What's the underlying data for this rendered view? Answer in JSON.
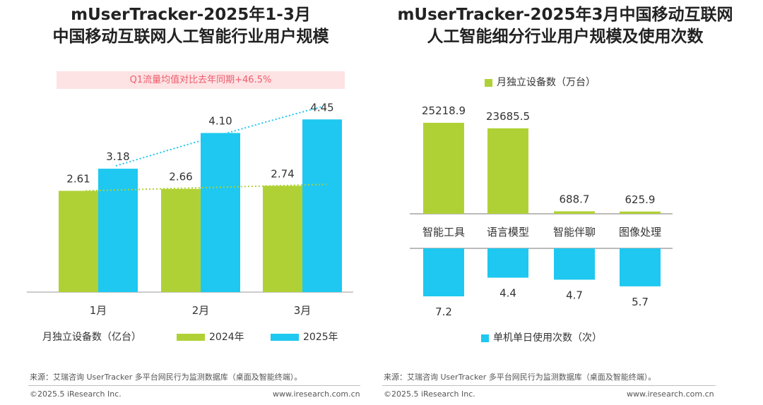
{
  "colors": {
    "green": "#b0d136",
    "blue": "#1ec8f0",
    "callout_bg": "#fde3e4",
    "callout_text": "#ef5c6c"
  },
  "left": {
    "title_line1": "mUserTracker-2025年1-3月",
    "title_line2": "中国移动互联网人工智能行业用户规模",
    "callout": "Q1流量均值对比去年同期+46.5%",
    "legend_label": "月独立设备数（亿台）",
    "source": "来源：艾瑞咨询 UserTracker 多平台网民行为监测数据库（桌面及智能终端）。",
    "copyright": "©2025.5 iResearch Inc.",
    "website": "www.iresearch.com.cn"
  },
  "right": {
    "title_line1": "mUserTracker-2025年3月中国移动互联网",
    "title_line2": "人工智能细分行业用户规模及使用次数",
    "source": "来源：艾瑞咨询 UserTracker 多平台网民行为监测数据库（桌面及智能终端）。",
    "copyright": "©2025.5 iResearch Inc.",
    "website": "www.iresearch.com.cn"
  },
  "chart_data": [
    {
      "type": "bar",
      "title": "mUserTracker-2025年1-3月中国移动互联网人工智能行业用户规模",
      "ylabel": "月独立设备数（亿台）",
      "categories": [
        "1月",
        "2月",
        "3月"
      ],
      "series": [
        {
          "name": "2024年",
          "values": [
            2.61,
            2.66,
            2.74
          ]
        },
        {
          "name": "2025年",
          "values": [
            3.18,
            4.1,
            4.45
          ]
        }
      ],
      "ylim": [
        0,
        5
      ],
      "trendlines": "dotted",
      "annotation": "Q1流量均值对比去年同期+46.5%",
      "legend_position": "bottom"
    },
    {
      "type": "bar",
      "title": "mUserTracker-2025年3月中国移动互联网人工智能细分行业用户规模及使用次数",
      "categories": [
        "智能工具",
        "语言模型",
        "智能伴聊",
        "图像处理"
      ],
      "series": [
        {
          "name": "月独立设备数（万台）",
          "values": [
            25218.9,
            23685.5,
            688.7,
            625.9
          ],
          "direction": "up"
        },
        {
          "name": "单机单日使用次数（次）",
          "values": [
            7.2,
            4.4,
            4.7,
            5.7
          ],
          "direction": "down"
        }
      ],
      "legend_position": "top and bottom"
    }
  ]
}
